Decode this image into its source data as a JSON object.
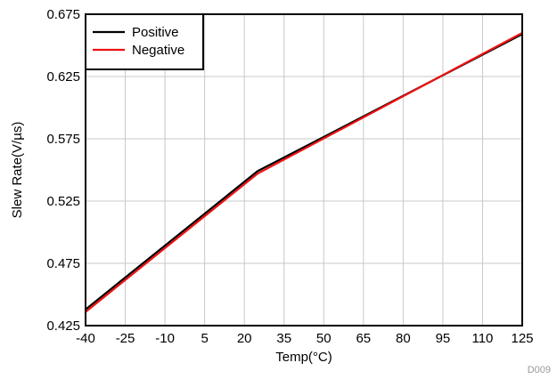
{
  "chart_data": {
    "type": "line",
    "title": "",
    "xlabel": "Temp(°C)",
    "ylabel": "Slew Rate(V/µs)",
    "xlim": [
      -40,
      125
    ],
    "ylim": [
      0.425,
      0.675
    ],
    "x_ticks": [
      -40,
      -25,
      -10,
      5,
      20,
      35,
      50,
      65,
      80,
      95,
      110,
      125
    ],
    "y_ticks": [
      0.425,
      0.475,
      0.525,
      0.575,
      0.625,
      0.675
    ],
    "x_tick_labels": [
      "-40",
      "-25",
      "-10",
      "5",
      "20",
      "35",
      "50",
      "65",
      "80",
      "95",
      "110",
      "125"
    ],
    "y_tick_labels": [
      "0.425",
      "0.475",
      "0.525",
      "0.575",
      "0.625",
      "0.675"
    ],
    "grid": true,
    "legend": "top-left",
    "series": [
      {
        "name": "Positive",
        "color": "#000000",
        "x": [
          -40,
          25,
          125
        ],
        "y": [
          0.438,
          0.549,
          0.659
        ]
      },
      {
        "name": "Negative",
        "color": "#ee1111",
        "x": [
          -40,
          25,
          125
        ],
        "y": [
          0.436,
          0.547,
          0.66
        ]
      }
    ],
    "footnote": "D009"
  }
}
